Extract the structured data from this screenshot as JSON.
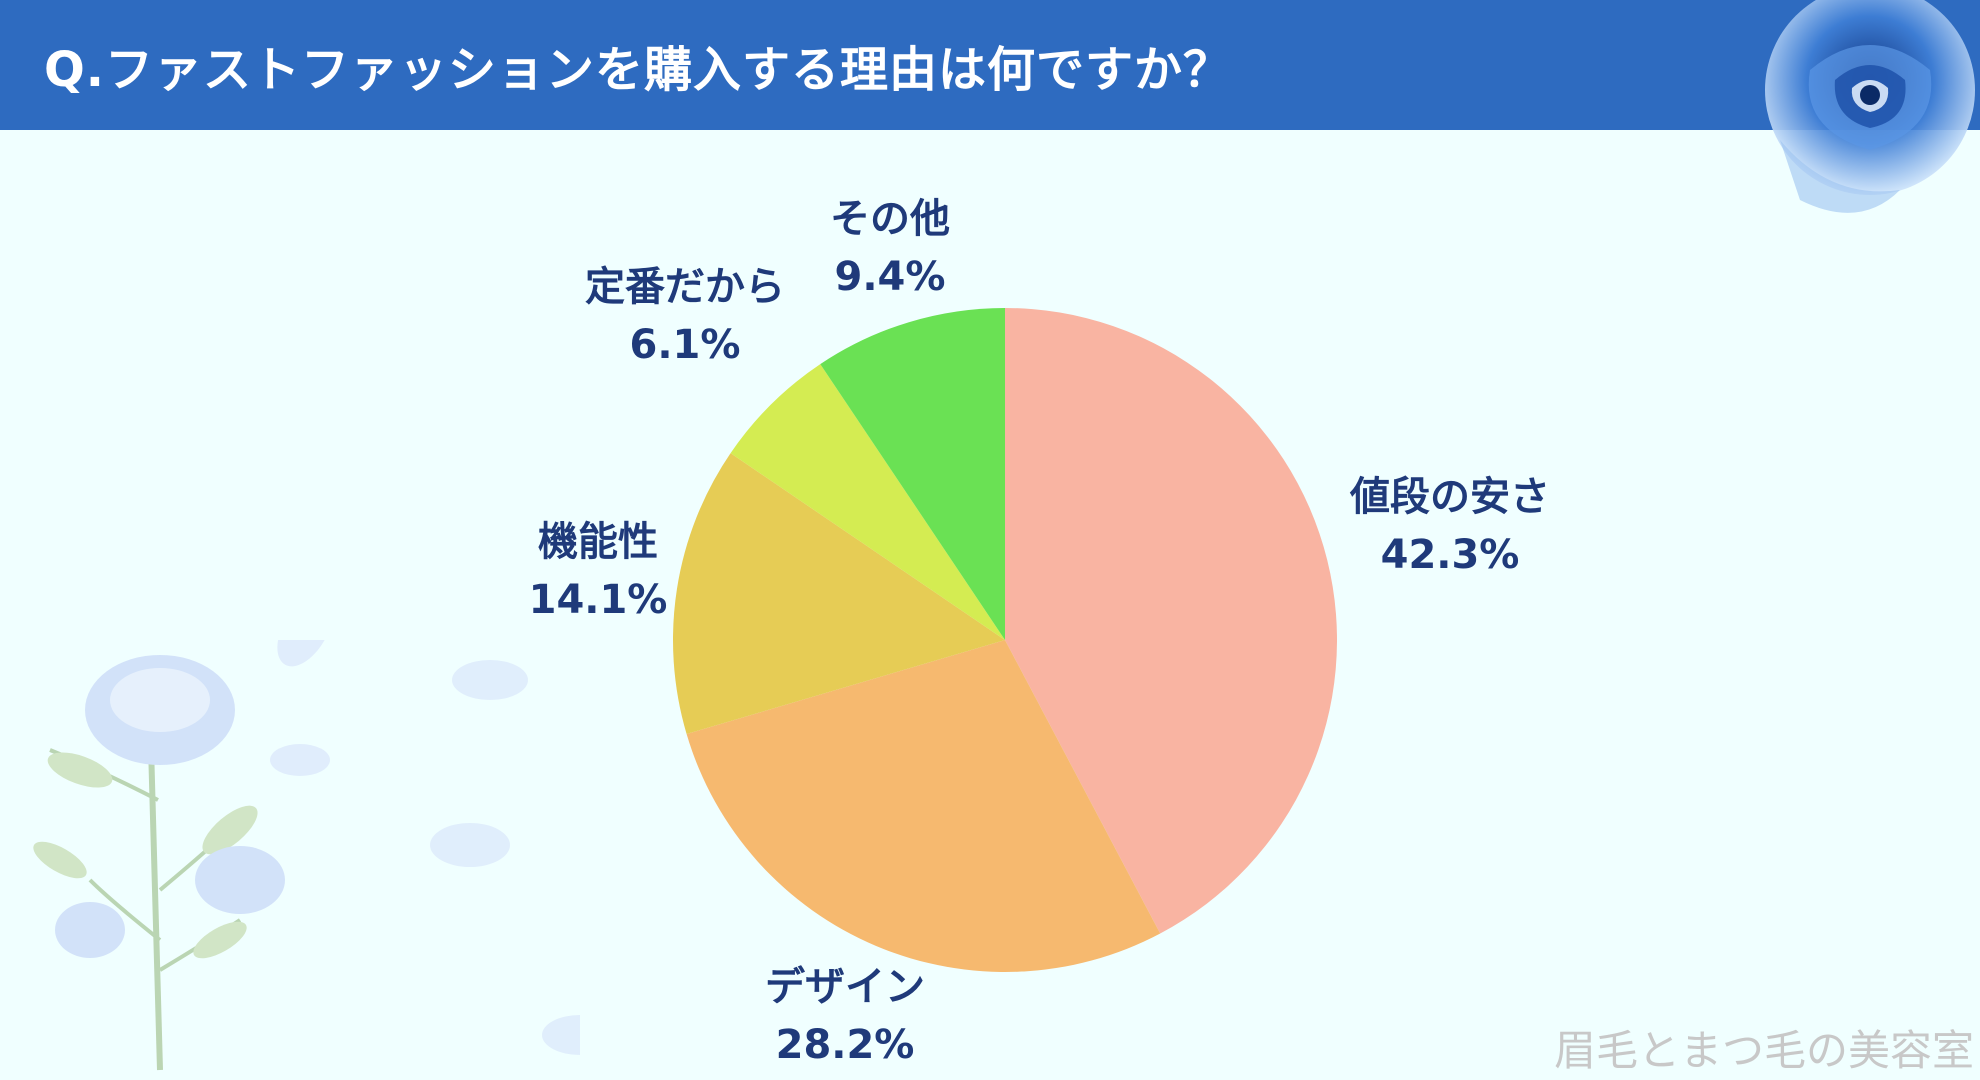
{
  "header": {
    "title": "Q.ファストファッションを購入する理由は何ですか？"
  },
  "watermark": "眉毛とまつ毛の美容室",
  "chart_data": {
    "type": "pie",
    "title": "Q.ファストファッションを購入する理由は何ですか？",
    "start_angle": "12 o'clock",
    "direction": "clockwise",
    "slices": [
      {
        "label": "値段の安さ",
        "value": 42.3,
        "value_label": "42.3%",
        "color": "#f9b4a2"
      },
      {
        "label": "デザイン",
        "value": 28.2,
        "value_label": "28.2%",
        "color": "#f6b96f"
      },
      {
        "label": "機能性",
        "value": 14.1,
        "value_label": "14.1%",
        "color": "#e6cc55"
      },
      {
        "label": "定番だから",
        "value": 6.1,
        "value_label": "6.1%",
        "color": "#d4ec52"
      },
      {
        "label": "その他",
        "value": 9.4,
        "value_label": "9.4%",
        "color": "#6ae154"
      }
    ]
  },
  "colors": {
    "header_bg": "#2e6bc0",
    "background": "#f0ffff",
    "label_text": "#1f3a7a"
  }
}
